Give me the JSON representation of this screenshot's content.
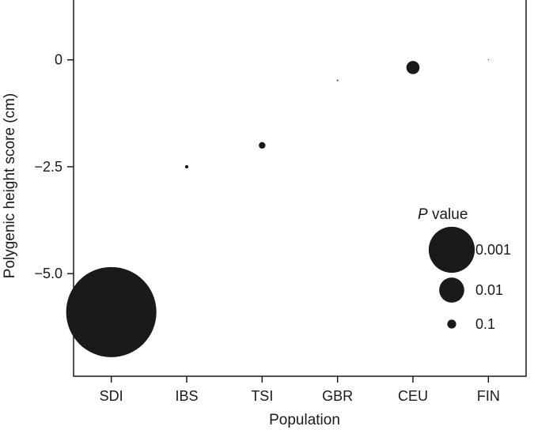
{
  "chart_data": {
    "type": "scatter",
    "title": "",
    "xlabel": "Population",
    "ylabel": "Polygenic height score (cm)",
    "categories": [
      "SDI",
      "IBS",
      "TSI",
      "GBR",
      "CEU",
      "FIN"
    ],
    "y_ticks": [
      0,
      -2.5,
      -5.0
    ],
    "y_tick_labels": [
      "0",
      "−2.5",
      "−5.0"
    ],
    "ylim": [
      -7.4,
      1.4
    ],
    "grid": false,
    "series": [
      {
        "values": [
          -5.9,
          -2.5,
          -2.0,
          -0.48,
          -0.18,
          0.0
        ],
        "p_values": [
          2e-05,
          0.3,
          0.15,
          0.5,
          0.05,
          0.6
        ]
      }
    ],
    "legend": {
      "title_italic": "P",
      "title_rest": " value",
      "placement": "bottom-right",
      "entries": [
        {
          "label": "0.001",
          "p": 0.001
        },
        {
          "label": "0.01",
          "p": 0.01
        },
        {
          "label": "0.1",
          "p": 0.1
        }
      ]
    },
    "colors": {
      "point": "#1a1a1a",
      "axis": "#1a1a1a"
    }
  }
}
